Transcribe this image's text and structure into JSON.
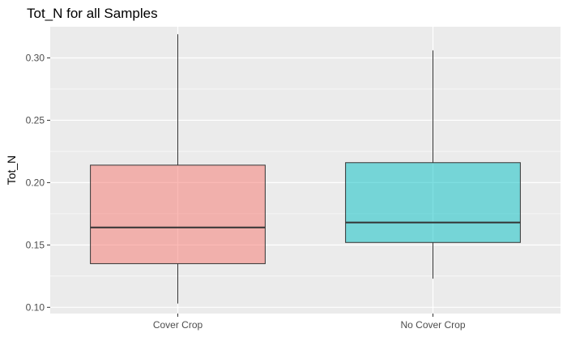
{
  "chart_data": {
    "type": "box",
    "title": "Tot_N for all Samples",
    "xlabel": "",
    "ylabel": "Tot_N",
    "ylim": [
      0.095,
      0.325
    ],
    "y_ticks": [
      0.1,
      0.15,
      0.2,
      0.25,
      0.3
    ],
    "y_tick_labels": [
      "0.10",
      "0.15",
      "0.20",
      "0.25",
      "0.30"
    ],
    "grid": true,
    "categories": [
      "Cover Crop",
      "No Cover Crop"
    ],
    "boxes": [
      {
        "category": "Cover Crop",
        "min": 0.103,
        "q1": 0.135,
        "median": 0.164,
        "q3": 0.214,
        "max": 0.319,
        "fill": "#F8766D"
      },
      {
        "category": "No Cover Crop",
        "min": 0.123,
        "q1": 0.152,
        "median": 0.168,
        "q3": 0.216,
        "max": 0.306,
        "fill": "#00BFC4"
      }
    ]
  }
}
